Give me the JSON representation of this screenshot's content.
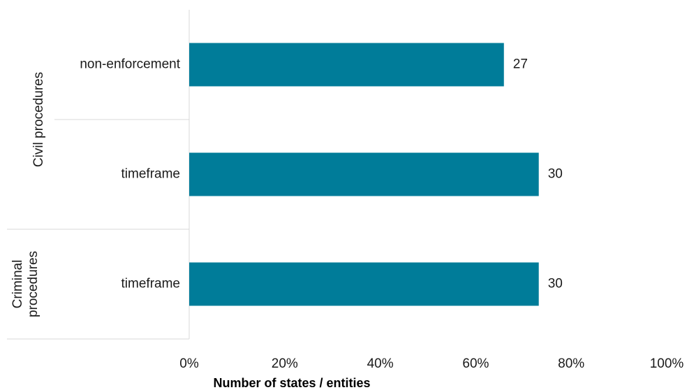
{
  "chart_data": {
    "type": "bar",
    "orientation": "horizontal",
    "title": "",
    "xlabel": "Number of states / entities",
    "ylabel": "",
    "xlim": [
      0,
      100
    ],
    "x_ticks": [
      "0%",
      "20%",
      "40%",
      "60%",
      "80%",
      "100%"
    ],
    "x_tick_values": [
      0,
      20,
      40,
      60,
      80,
      100
    ],
    "bar_color": "#007c99",
    "grid": false,
    "legend": "none",
    "groups": [
      {
        "name": [
          "Civil procedures"
        ],
        "bars": [
          {
            "label": "non-enforcement",
            "percent": 65.9,
            "value_label": "27"
          },
          {
            "label": "timeframe",
            "percent": 73.2,
            "value_label": "30"
          }
        ]
      },
      {
        "name": [
          "Criminal",
          "procedures"
        ],
        "bars": [
          {
            "label": "timeframe",
            "percent": 73.2,
            "value_label": "30"
          }
        ]
      }
    ]
  }
}
